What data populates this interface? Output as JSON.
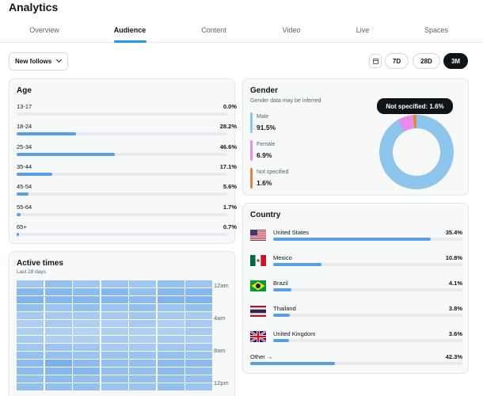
{
  "app": {
    "title": "Analytics"
  },
  "tabs": [
    {
      "label": "Overview",
      "active": false
    },
    {
      "label": "Audience",
      "active": true
    },
    {
      "label": "Content",
      "active": false
    },
    {
      "label": "Video",
      "active": false
    },
    {
      "label": "Live",
      "active": false
    },
    {
      "label": "Spaces",
      "active": false
    }
  ],
  "filters": {
    "metric_dropdown": "New follows",
    "ranges": [
      {
        "label": "7D",
        "active": false
      },
      {
        "label": "28D",
        "active": false
      },
      {
        "label": "3M",
        "active": true
      }
    ]
  },
  "age": {
    "title": "Age",
    "rows": [
      {
        "label": "13-17",
        "pct_text": "0.0%",
        "value": 0.0
      },
      {
        "label": "18-24",
        "pct_text": "28.2%",
        "value": 28.2
      },
      {
        "label": "25-34",
        "pct_text": "46.6%",
        "value": 46.6
      },
      {
        "label": "35-44",
        "pct_text": "17.1%",
        "value": 17.1
      },
      {
        "label": "45-54",
        "pct_text": "5.6%",
        "value": 5.6
      },
      {
        "label": "55-64",
        "pct_text": "1.7%",
        "value": 1.7
      },
      {
        "label": "65+",
        "pct_text": "0.7%",
        "value": 0.7
      }
    ]
  },
  "gender": {
    "title": "Gender",
    "subtitle": "Gender data may be inferred",
    "items": [
      {
        "name": "Male",
        "pct_text": "91.5%",
        "value": 91.5,
        "color": "#8ec5ec"
      },
      {
        "name": "Female",
        "pct_text": "6.9%",
        "value": 6.9,
        "color": "#e88ee8"
      },
      {
        "name": "Not specified",
        "pct_text": "1.6%",
        "value": 1.6,
        "color": "#e0863a"
      }
    ],
    "tooltip": "Not specified: 1.6%"
  },
  "country": {
    "title": "Country",
    "rows": [
      {
        "name": "United States",
        "pct_text": "35.4%",
        "value": 35.4,
        "flag": "us-flag-icon"
      },
      {
        "name": "Mexico",
        "pct_text": "10.8%",
        "value": 10.8,
        "flag": "mexico-flag-icon"
      },
      {
        "name": "Brazil",
        "pct_text": "4.1%",
        "value": 4.1,
        "flag": "brazil-flag-icon"
      },
      {
        "name": "Thailand",
        "pct_text": "3.8%",
        "value": 3.8,
        "flag": "thailand-flag-icon"
      },
      {
        "name": "United Kingdom",
        "pct_text": "3.6%",
        "value": 3.6,
        "flag": "uk-flag-icon"
      }
    ],
    "other": {
      "name": "Other →",
      "pct_text": "42.3%",
      "value": 42.3
    }
  },
  "active_times": {
    "title": "Active times",
    "subtitle": "Last 28 days",
    "hour_labels": [
      "12am",
      "4am",
      "8am",
      "12pm"
    ],
    "intensity": [
      [
        0.35,
        0.45,
        0.35,
        0.4,
        0.35,
        0.45,
        0.4
      ],
      [
        0.55,
        0.55,
        0.5,
        0.55,
        0.45,
        0.55,
        0.55
      ],
      [
        0.6,
        0.55,
        0.55,
        0.55,
        0.5,
        0.6,
        0.6
      ],
      [
        0.45,
        0.4,
        0.45,
        0.4,
        0.45,
        0.4,
        0.45
      ],
      [
        0.3,
        0.3,
        0.3,
        0.3,
        0.35,
        0.3,
        0.3
      ],
      [
        0.25,
        0.3,
        0.25,
        0.25,
        0.3,
        0.25,
        0.3
      ],
      [
        0.25,
        0.25,
        0.2,
        0.25,
        0.25,
        0.25,
        0.3
      ],
      [
        0.3,
        0.25,
        0.25,
        0.3,
        0.25,
        0.3,
        0.25
      ],
      [
        0.35,
        0.4,
        0.35,
        0.3,
        0.3,
        0.35,
        0.35
      ],
      [
        0.45,
        0.45,
        0.4,
        0.4,
        0.4,
        0.45,
        0.4
      ],
      [
        0.5,
        0.65,
        0.5,
        0.45,
        0.45,
        0.5,
        0.5
      ],
      [
        0.5,
        0.55,
        0.55,
        0.45,
        0.45,
        0.5,
        0.45
      ],
      [
        0.45,
        0.5,
        0.45,
        0.45,
        0.45,
        0.45,
        0.45
      ],
      [
        0.45,
        0.45,
        0.45,
        0.4,
        0.4,
        0.45,
        0.4
      ]
    ]
  },
  "colors": {
    "accent": "#1d9bf0",
    "bar": "#5a9ee8",
    "track": "#e7eaee",
    "card_bg": "#f7f9f9"
  }
}
